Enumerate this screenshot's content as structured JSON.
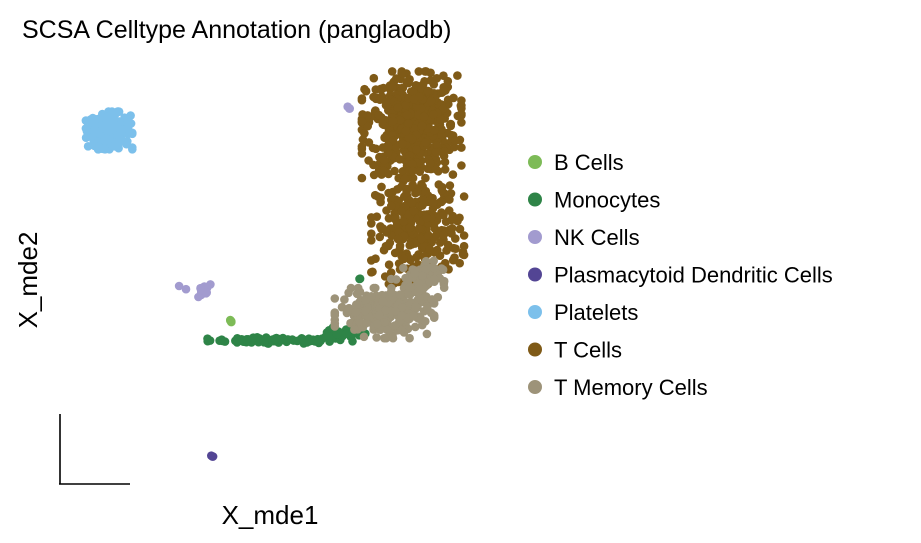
{
  "chart_data": {
    "type": "scatter",
    "title": "SCSA Celltype Annotation (panglaodb)",
    "xlabel": "X_mde1",
    "ylabel": "X_mde2",
    "grid": false,
    "legend_position": "right",
    "xlim": [
      -4.0,
      3.3
    ],
    "ylim": [
      -4.3,
      3.2
    ],
    "series": [
      {
        "name": "B Cells",
        "color": "#7dbb57",
        "clusters": [
          {
            "cx": -1.0,
            "cy": -1.35,
            "rx": 0.04,
            "ry": 0.04,
            "n": 5
          }
        ]
      },
      {
        "name": "Monocytes",
        "color": "#2e8447",
        "clusters": [
          {
            "cx": -0.2,
            "cy": -1.68,
            "rx": 1.15,
            "ry": 0.05,
            "n": 90
          },
          {
            "cx": 0.9,
            "cy": -1.55,
            "rx": 0.35,
            "ry": 0.09,
            "n": 25
          },
          {
            "cx": 1.13,
            "cy": -0.6,
            "rx": 0.03,
            "ry": 0.03,
            "n": 2
          }
        ]
      },
      {
        "name": "NK Cells",
        "color": "#a29bcf",
        "clusters": [
          {
            "cx": -1.55,
            "cy": -0.8,
            "rx": 0.28,
            "ry": 0.14,
            "n": 12
          },
          {
            "cx": 0.95,
            "cy": 2.4,
            "rx": 0.06,
            "ry": 0.03,
            "n": 3
          }
        ]
      },
      {
        "name": "Plasmacytoid Dendritic Cells",
        "color": "#534594",
        "clusters": [
          {
            "cx": -1.32,
            "cy": -3.73,
            "rx": 0.04,
            "ry": 0.06,
            "n": 3
          }
        ]
      },
      {
        "name": "Platelets",
        "color": "#7cc0eb",
        "clusters": [
          {
            "cx": -3.02,
            "cy": 2.0,
            "rx": 0.35,
            "ry": 0.3,
            "n": 220
          }
        ]
      },
      {
        "name": "T Cells",
        "color": "#7f5a17",
        "clusters": [
          {
            "cx": 2.0,
            "cy": 2.1,
            "rx": 0.75,
            "ry": 0.85,
            "n": 550
          },
          {
            "cx": 2.1,
            "cy": 0.3,
            "rx": 0.7,
            "ry": 0.9,
            "n": 300
          }
        ]
      },
      {
        "name": "T Memory Cells",
        "color": "#9d9379",
        "clusters": [
          {
            "cx": 1.55,
            "cy": -1.2,
            "rx": 0.75,
            "ry": 0.4,
            "n": 260
          },
          {
            "cx": 2.1,
            "cy": -0.6,
            "rx": 0.4,
            "ry": 0.3,
            "n": 60
          }
        ]
      }
    ]
  }
}
